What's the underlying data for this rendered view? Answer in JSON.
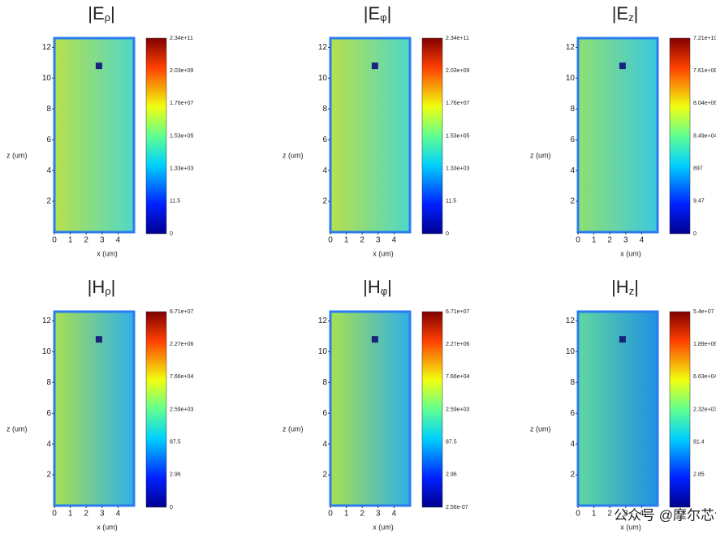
{
  "panels": [
    {
      "symbol": "E",
      "subscript": "ρ",
      "xlabel": "x (um)",
      "ylabel": "z (um)",
      "xlim": [
        0,
        5
      ],
      "ylim": [
        0,
        12.6
      ],
      "xticks": [
        0,
        1,
        2,
        3,
        4
      ],
      "yticks": [
        2,
        4,
        6,
        8,
        10,
        12
      ],
      "colors": [
        "#b8e04a",
        "#4fd8c8"
      ],
      "colorbar_labels": [
        "2.34e+11",
        "2.03e+09",
        "1.76e+07",
        "1.53e+05",
        "1.33e+03",
        "11.5",
        "0"
      ]
    },
    {
      "symbol": "E",
      "subscript": "φ",
      "xlabel": "x (um)",
      "ylabel": "z (um)",
      "xlim": [
        0,
        5
      ],
      "ylim": [
        0,
        12.6
      ],
      "xticks": [
        0,
        1,
        2,
        3,
        4
      ],
      "yticks": [
        2,
        4,
        6,
        8,
        10,
        12
      ],
      "colors": [
        "#b8e04a",
        "#4fd8c8"
      ],
      "colorbar_labels": [
        "2.34e+11",
        "2.03e+09",
        "1.76e+07",
        "1.53e+05",
        "1.33e+03",
        "11.5",
        "0"
      ]
    },
    {
      "symbol": "E",
      "subscript": "z",
      "xlabel": "x (um)",
      "ylabel": "z (um)",
      "xlim": [
        0,
        5
      ],
      "ylim": [
        0,
        12.6
      ],
      "xticks": [
        0,
        1,
        2,
        3,
        4
      ],
      "yticks": [
        2,
        4,
        6,
        8,
        10,
        12
      ],
      "colors": [
        "#8ee070",
        "#3cc8e0"
      ],
      "colorbar_labels": [
        "7.21e+10",
        "7.61e+08",
        "8.04e+06",
        "8.49e+04",
        "897",
        "9.47",
        "0"
      ]
    },
    {
      "symbol": "H",
      "subscript": "ρ",
      "xlabel": "x (um)",
      "ylabel": "z (um)",
      "xlim": [
        0,
        5
      ],
      "ylim": [
        0,
        12.6
      ],
      "xticks": [
        0,
        1,
        2,
        3,
        4
      ],
      "yticks": [
        2,
        4,
        6,
        8,
        10,
        12
      ],
      "colors": [
        "#a8e050",
        "#2fb0e8"
      ],
      "colorbar_labels": [
        "6.71e+07",
        "2.27e+06",
        "7.66e+04",
        "2.59e+03",
        "87.5",
        "2.96",
        "0"
      ]
    },
    {
      "symbol": "H",
      "subscript": "φ",
      "xlabel": "x (um)",
      "ylabel": "z (um)",
      "xlim": [
        0,
        5
      ],
      "ylim": [
        0,
        12.6
      ],
      "xticks": [
        0,
        1,
        2,
        3,
        4
      ],
      "yticks": [
        2,
        4,
        6,
        8,
        10,
        12
      ],
      "colors": [
        "#a8e050",
        "#2fb0e8"
      ],
      "colorbar_labels": [
        "6.71e+07",
        "2.27e+06",
        "7.66e+04",
        "2.59e+03",
        "87.5",
        "2.96",
        "2.56e-07"
      ]
    },
    {
      "symbol": "H",
      "subscript": "z",
      "xlabel": "x (um)",
      "ylabel": "z (um)",
      "xlim": [
        0,
        5
      ],
      "ylim": [
        0,
        12.6
      ],
      "xticks": [
        0,
        1,
        2,
        3,
        4
      ],
      "yticks": [
        2,
        4,
        6,
        8,
        10,
        12
      ],
      "colors": [
        "#60d8a0",
        "#2090e0"
      ],
      "colorbar_labels": [
        "5.4e+07",
        "1.89e+06",
        "6.63e+04",
        "2.32e+03",
        "81.4",
        "2.85"
      ]
    }
  ],
  "watermark": "公众号 @摩尔芯创"
}
